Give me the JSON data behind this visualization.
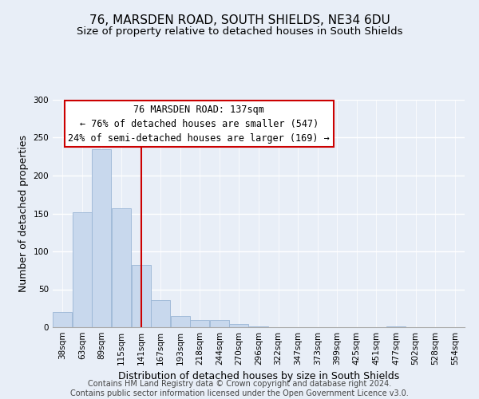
{
  "title": "76, MARSDEN ROAD, SOUTH SHIELDS, NE34 6DU",
  "subtitle": "Size of property relative to detached houses in South Shields",
  "xlabel": "Distribution of detached houses by size in South Shields",
  "ylabel": "Number of detached properties",
  "bin_labels": [
    "38sqm",
    "63sqm",
    "89sqm",
    "115sqm",
    "141sqm",
    "167sqm",
    "193sqm",
    "218sqm",
    "244sqm",
    "270sqm",
    "296sqm",
    "322sqm",
    "347sqm",
    "373sqm",
    "399sqm",
    "425sqm",
    "451sqm",
    "477sqm",
    "502sqm",
    "528sqm",
    "554sqm"
  ],
  "bar_values": [
    20,
    152,
    235,
    157,
    82,
    36,
    15,
    9,
    9,
    4,
    1,
    0,
    0,
    0,
    0,
    0,
    0,
    1,
    0,
    0,
    0
  ],
  "bar_color": "#c8d8ed",
  "bar_edge_color": "#9ab5d5",
  "vline_x_index": 4,
  "vline_color": "#cc0000",
  "annotation_line1": "76 MARSDEN ROAD: 137sqm",
  "annotation_line2": "← 76% of detached houses are smaller (547)",
  "annotation_line3": "24% of semi-detached houses are larger (169) →",
  "annotation_box_color": "#ffffff",
  "annotation_box_edge": "#cc0000",
  "ylim": [
    0,
    300
  ],
  "yticks": [
    0,
    50,
    100,
    150,
    200,
    250,
    300
  ],
  "footer_text": "Contains HM Land Registry data © Crown copyright and database right 2024.\nContains public sector information licensed under the Open Government Licence v3.0.",
  "background_color": "#e8eef7",
  "grid_color": "#ffffff",
  "title_fontsize": 11,
  "subtitle_fontsize": 9.5,
  "axis_label_fontsize": 9,
  "tick_fontsize": 7.5,
  "annotation_fontsize": 8.5,
  "footer_fontsize": 7
}
